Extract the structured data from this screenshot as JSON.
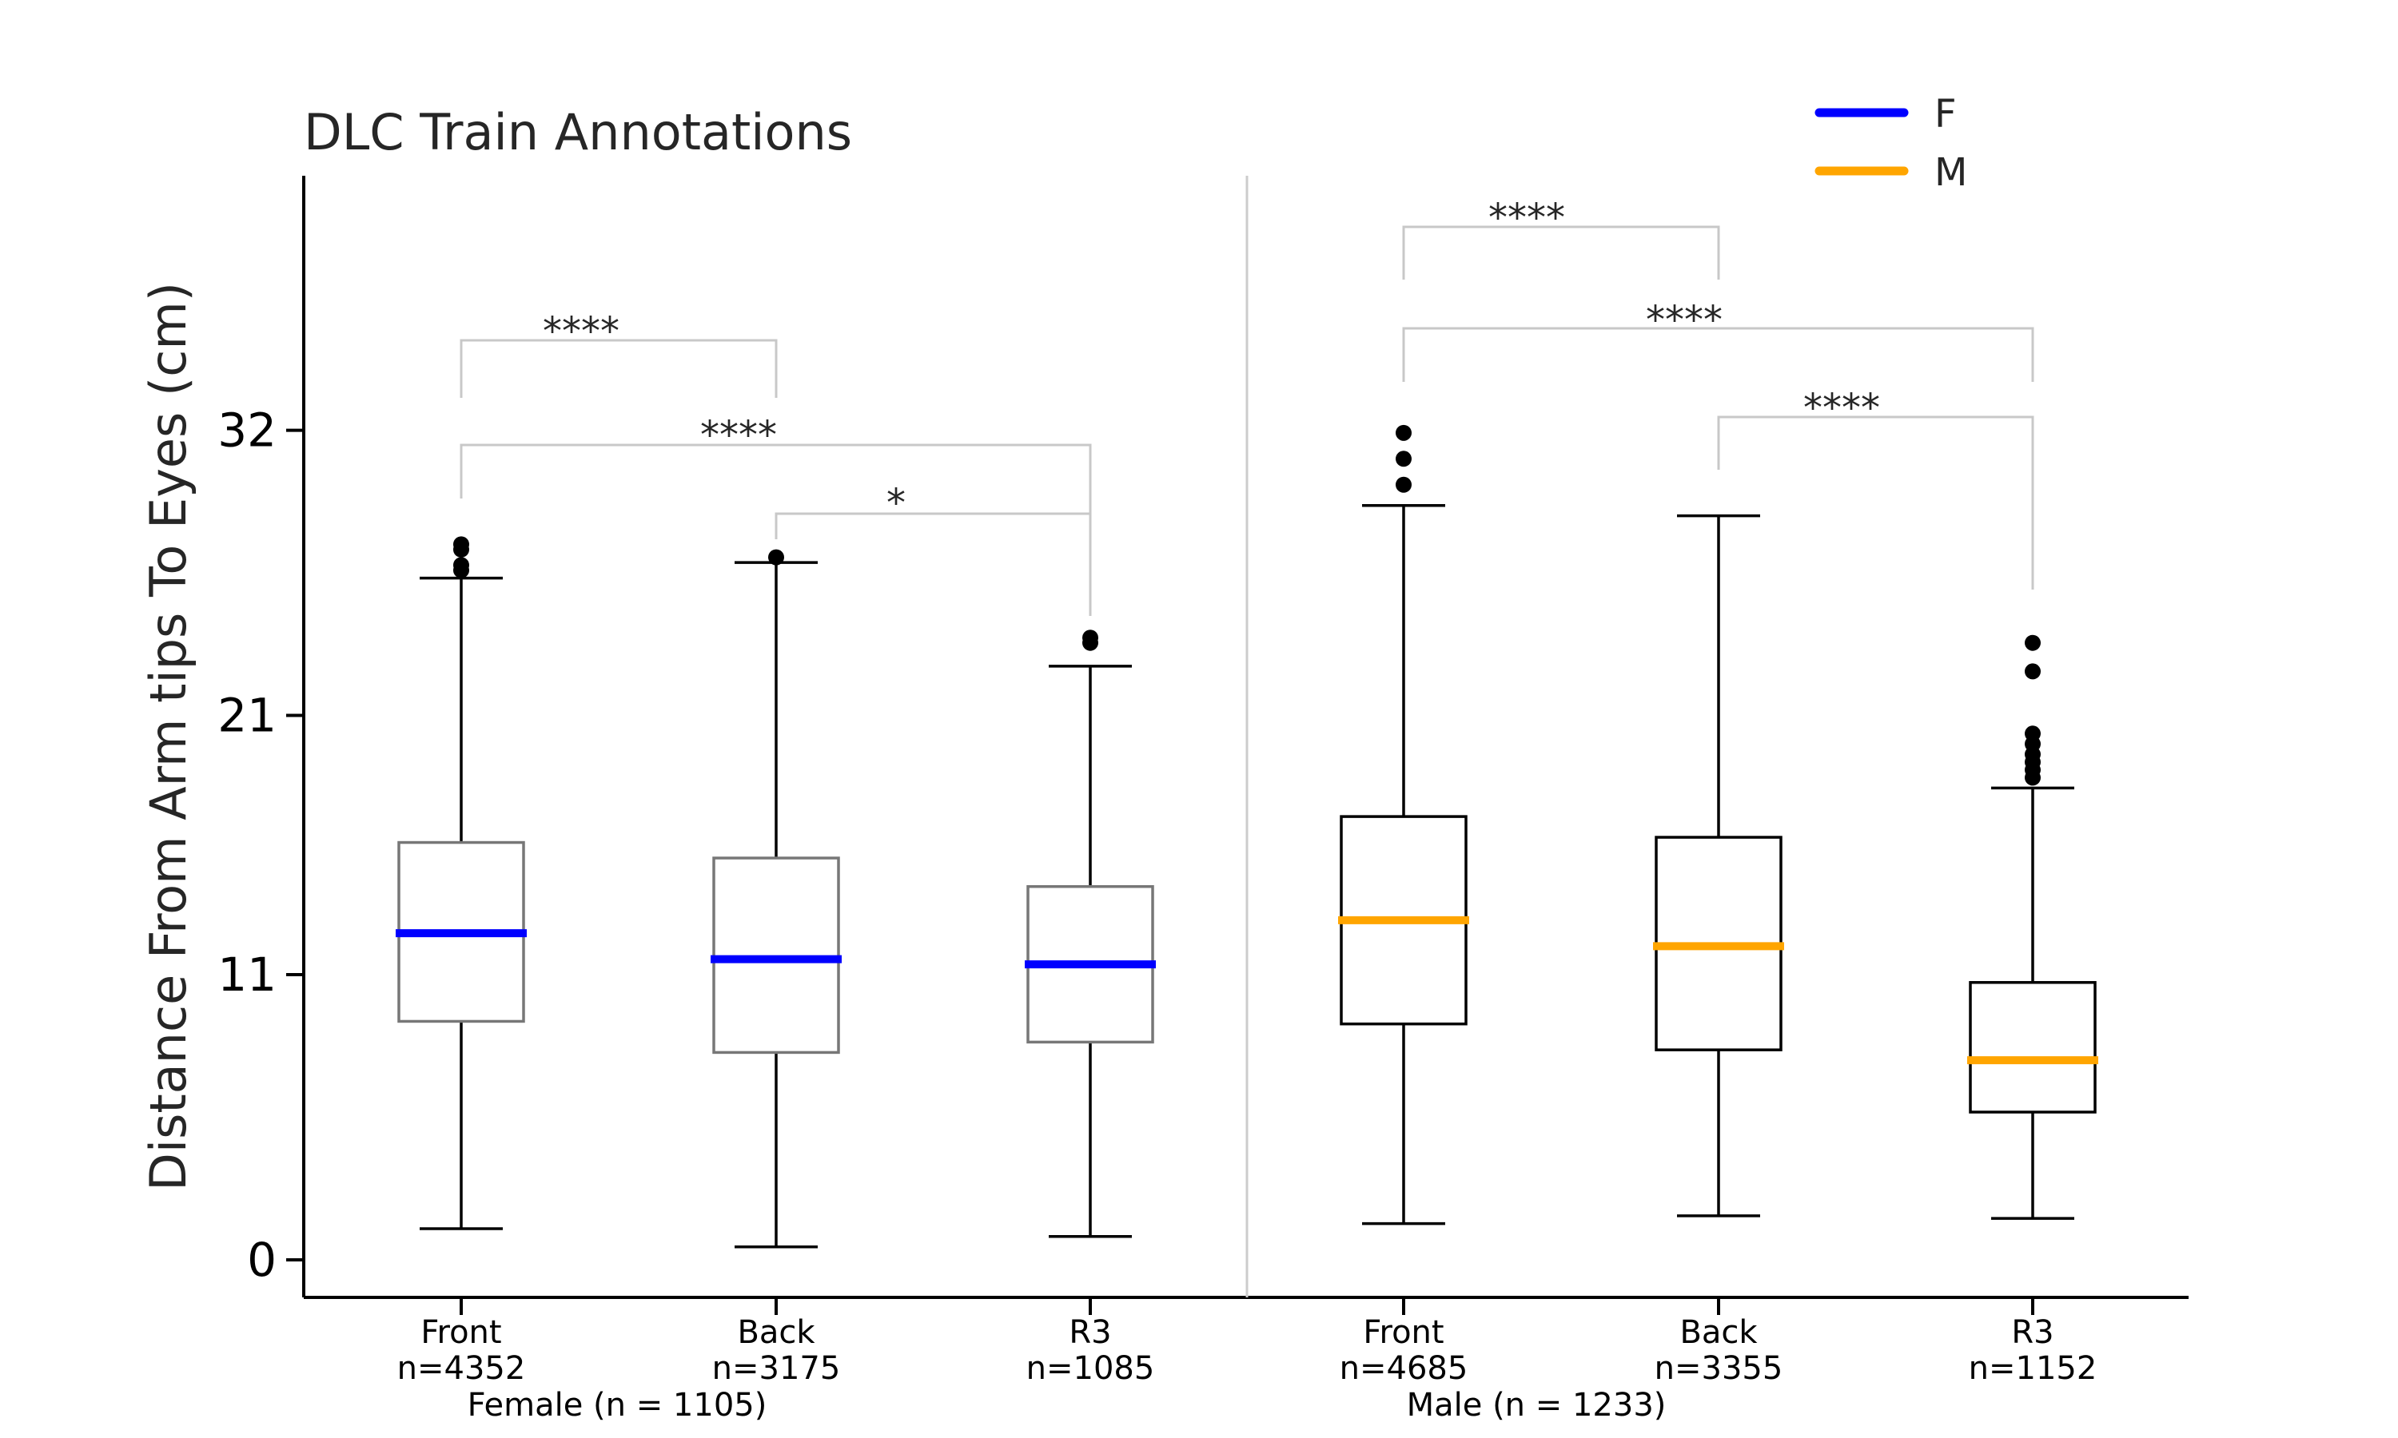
{
  "chart_data": {
    "type": "box",
    "title": "DLC Train Annotations",
    "ylabel": "Distance From Arm tips To Eyes (cm)",
    "xlabel": "",
    "yticks": [
      0,
      11,
      21,
      32
    ],
    "ylim": [
      -1.5,
      42
    ],
    "grid": false,
    "legend": {
      "position": "top-right",
      "entries": [
        {
          "label": "F",
          "color": "#0000ff"
        },
        {
          "label": "M",
          "color": "#ffa500"
        }
      ]
    },
    "groups": [
      {
        "label": "Female (n = 1105)",
        "series": "F"
      },
      {
        "label": "Male (n = 1233)",
        "series": "M"
      }
    ],
    "boxes": [
      {
        "group": 0,
        "name": "Front",
        "n_label": "n=4352",
        "whisker_low": 1.2,
        "q1": 9.2,
        "median": 12.6,
        "q3": 16.1,
        "whisker_high": 26.3,
        "outliers": [
          26.6,
          26.8,
          27.4,
          27.6
        ],
        "median_color": "#0000ff",
        "box_color": "#777777"
      },
      {
        "group": 0,
        "name": "Back",
        "n_label": "n=3175",
        "whisker_low": 0.5,
        "q1": 8.0,
        "median": 11.6,
        "q3": 15.5,
        "whisker_high": 26.9,
        "outliers": [
          27.1
        ],
        "median_color": "#0000ff",
        "box_color": "#777777"
      },
      {
        "group": 0,
        "name": "R3",
        "n_label": "n=1085",
        "whisker_low": 0.9,
        "q1": 8.4,
        "median": 11.4,
        "q3": 14.4,
        "whisker_high": 22.9,
        "outliers": [
          23.8,
          24.0
        ],
        "median_color": "#0000ff",
        "box_color": "#777777"
      },
      {
        "group": 1,
        "name": "Front",
        "n_label": "n=4685",
        "whisker_low": 1.4,
        "q1": 9.1,
        "median": 13.1,
        "q3": 17.1,
        "whisker_high": 29.1,
        "outliers": [
          29.9,
          30.9,
          31.9
        ],
        "median_color": "#ffa500",
        "box_color": "#000000"
      },
      {
        "group": 1,
        "name": "Back",
        "n_label": "n=3355",
        "whisker_low": 1.7,
        "q1": 8.1,
        "median": 12.1,
        "q3": 16.3,
        "whisker_high": 28.7,
        "outliers": [],
        "median_color": "#ffa500",
        "box_color": "#000000"
      },
      {
        "group": 1,
        "name": "R3",
        "n_label": "n=1152",
        "whisker_low": 1.6,
        "q1": 5.7,
        "median": 7.7,
        "q3": 10.7,
        "whisker_high": 18.2,
        "outliers": [
          18.6,
          18.9,
          19.2,
          19.5,
          19.9,
          20.3,
          22.7,
          23.8
        ],
        "median_color": "#ffa500",
        "box_color": "#000000"
      }
    ],
    "significance": [
      {
        "from": 0,
        "to": 1,
        "label": "****"
      },
      {
        "from": 0,
        "to": 2,
        "label": "****"
      },
      {
        "from": 1,
        "to": 2,
        "label": "*"
      },
      {
        "from": 3,
        "to": 4,
        "label": "****"
      },
      {
        "from": 3,
        "to": 5,
        "label": "****"
      },
      {
        "from": 4,
        "to": 5,
        "label": "****"
      }
    ]
  }
}
